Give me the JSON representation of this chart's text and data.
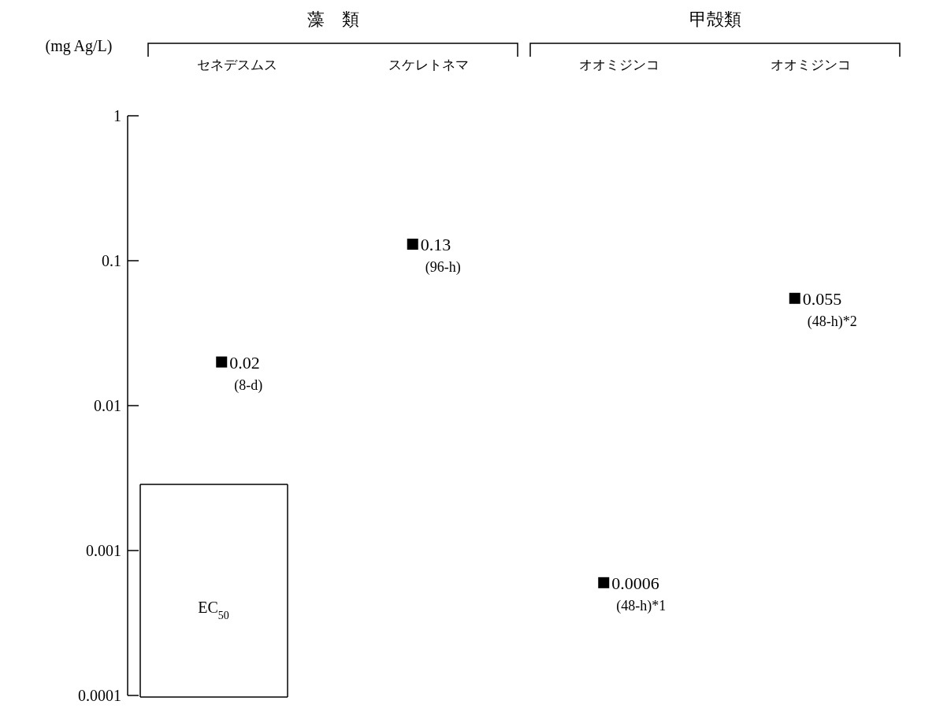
{
  "chart_data": {
    "type": "scatter",
    "categories": [
      "セネデスムス",
      "スケレトネマ",
      "オオミジンコ",
      "オオミジンコ"
    ],
    "series": [
      {
        "name": "EC$_{50}$",
        "color": "#000000",
        "values": [
          0.02,
          0.13,
          0.0006,
          0.055
        ]
      }
    ],
    "legend": "bottom left",
    "ylabel": "(mg Ag/L)",
    "log": "y",
    "ylim": [
      0.0001,
      1
    ],
    "yticks": [
      0.0001,
      0.001,
      0.01,
      0.1,
      1
    ],
    "marker": "square",
    "data_labels": true,
    "grid": false,
    "annotations": [
      "藻　類",
      "甲殻類",
      "(8-d)",
      "(96-h)",
      "(48-h)*1",
      "(48-h)*2"
    ]
  }
}
